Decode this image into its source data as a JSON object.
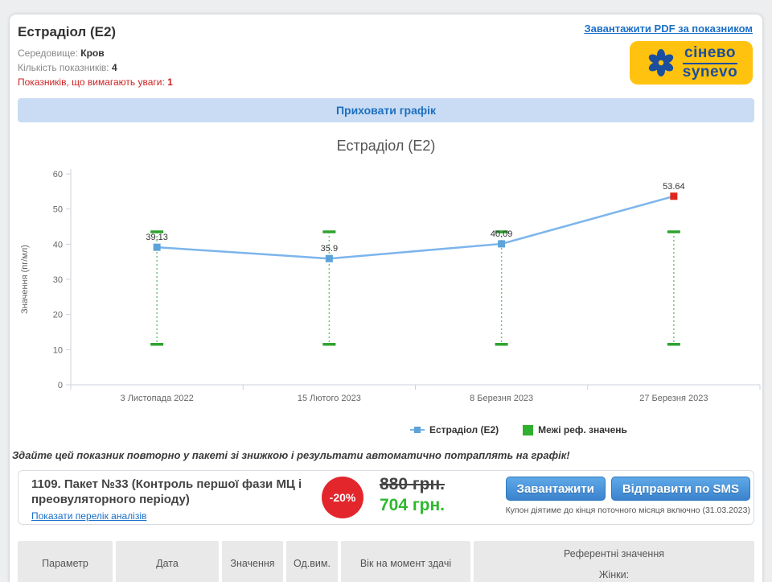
{
  "header": {
    "title": "Естрадіол (E2)",
    "medium_label": "Середовище:",
    "medium_value": "Кров",
    "count_label": "Кількість показників:",
    "count_value": "4",
    "attention_label": "Показників, що вимагають уваги:",
    "attention_value": "1",
    "pdf_link": "Завантажити PDF за показником",
    "logo_line1": "сінево",
    "logo_line2": "synevo"
  },
  "toggle_label": "Приховати графік",
  "chart_data": {
    "type": "line",
    "title": "Естрадіол (E2)",
    "ylabel": "Значення (пг/мл)",
    "ylim": [
      0,
      60
    ],
    "yticks": [
      0,
      10,
      20,
      30,
      40,
      50,
      60
    ],
    "grid": false,
    "legend_position": "bottom",
    "categories": [
      "3 Листопада 2022",
      "15 Лютого 2023",
      "8 Березня 2023",
      "27 Березня 2023"
    ],
    "series": [
      {
        "name": "Естрадіол (E2)",
        "values": [
          39.13,
          35.9,
          40.09,
          53.64
        ],
        "color": "#7cb5ec",
        "marker_color": "#5ca3d9",
        "out_of_range": [
          false,
          false,
          false,
          true
        ]
      }
    ],
    "out_of_range_color": "#e0251c",
    "reference_range": {
      "name": "Межі реф. значень",
      "low": 11.5,
      "high": 43.5,
      "color": "#2fa32f",
      "line_color": "#74c274"
    }
  },
  "promo_text": "Здайте цей показник повторно у пакеті зі знижкою і результати автоматично потраплять на графік!",
  "package": {
    "title": "1109. Пакет №33 (Контроль першої фази МЦ і преовуляторного періоду)",
    "show_list_link": "Показати перелік аналізів",
    "discount": "-20%",
    "old_price": "880 грн.",
    "new_price": "704 грн.",
    "download_button": "Завантажити",
    "sms_button": "Відправити по SMS",
    "coupon_note": "Купон діятиме до кінця поточного місяця включно (31.03.2023)"
  },
  "table": {
    "headers": [
      "Параметр",
      "Дата",
      "Значення",
      "Од.вим.",
      "Вік на момент здачі",
      "Референтні значення"
    ],
    "ref_note": "Жінки:"
  },
  "colors": {
    "line_blue": "#7cb5ec",
    "marker_blue": "#5ca3d9",
    "alert_red": "#e0251c",
    "ref_green": "#2fa32f",
    "brand_yellow": "#ffc20e",
    "brand_blue": "#1c4e9e",
    "link_blue": "#1a6fc9",
    "price_green": "#2eb82e",
    "discount_red": "#e3262c",
    "toggle_bg": "#c9dcf3",
    "toggle_text": "#1d6fc0"
  }
}
